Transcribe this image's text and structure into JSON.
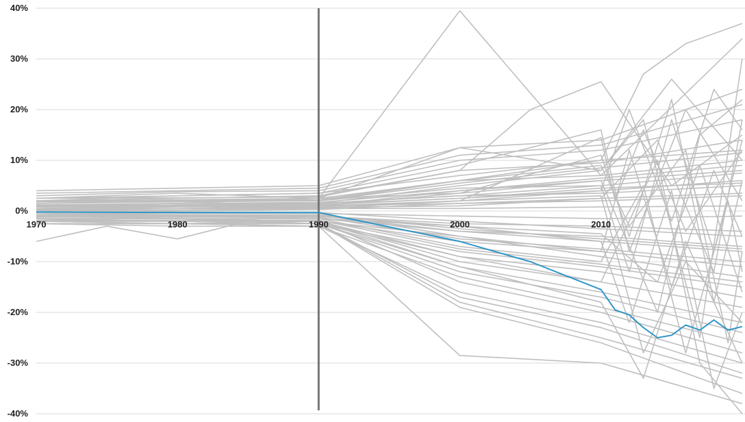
{
  "chart_data": {
    "type": "line",
    "title": "",
    "xlabel": "",
    "ylabel": "",
    "xlim": [
      1970,
      2020.2
    ],
    "ylim": [
      -40,
      40
    ],
    "x_ticks": [
      1970,
      1980,
      1990,
      2000,
      2010
    ],
    "x_tick_labels": [
      "1970",
      "1980",
      "1990",
      "2000",
      "2010"
    ],
    "y_ticks": [
      40,
      30,
      20,
      10,
      0,
      -10,
      -20,
      -30,
      -40
    ],
    "y_tick_labels": [
      "40%",
      "30%",
      "20%",
      "10%",
      "0%",
      "-10%",
      "-20%",
      "-30%",
      "-40%"
    ],
    "grid": "horizontal",
    "legend": "none",
    "reference_line": {
      "x": 1990,
      "color": "#777777"
    },
    "highlight_color": "#2f95c8",
    "background_color": "#bfbfbf",
    "highlighted_series": {
      "x": [
        1970,
        1980,
        1990,
        2000,
        2005,
        2010,
        2011,
        2012,
        2013,
        2014,
        2015,
        2016,
        2017,
        2018,
        2019,
        2020
      ],
      "values": [
        -0.2,
        -0.3,
        -0.3,
        -6.0,
        -10.0,
        -15.5,
        -19.5,
        -20.5,
        -23.0,
        -25.0,
        -24.5,
        -22.5,
        -23.5,
        -21.5,
        -23.5,
        -22.8
      ]
    },
    "background_series": [
      {
        "x": [
          1970,
          1980,
          1990,
          2000,
          2010,
          2020
        ],
        "values": [
          4.0,
          4.5,
          5.0,
          12.5,
          14.0,
          24.0
        ]
      },
      {
        "x": [
          1970,
          1980,
          1990,
          2000,
          2010,
          2020
        ],
        "values": [
          3.0,
          3.8,
          4.0,
          10.0,
          12.0,
          18.0
        ]
      },
      {
        "x": [
          1970,
          1980,
          1990,
          2000,
          2010,
          2020
        ],
        "values": [
          2.5,
          2.6,
          2.8,
          8.0,
          9.5,
          14.0
        ]
      },
      {
        "x": [
          1970,
          1980,
          1990,
          2000,
          2010,
          2020
        ],
        "values": [
          2.0,
          2.2,
          2.5,
          6.0,
          7.0,
          10.0
        ]
      },
      {
        "x": [
          1970,
          1980,
          1990,
          2000,
          2010,
          2020
        ],
        "values": [
          1.5,
          1.8,
          2.0,
          4.5,
          5.0,
          7.5
        ]
      },
      {
        "x": [
          1970,
          1980,
          1990,
          2000,
          2010,
          2020
        ],
        "values": [
          1.0,
          1.2,
          1.5,
          3.0,
          3.5,
          5.0
        ]
      },
      {
        "x": [
          1970,
          1980,
          1990,
          2000,
          2010,
          2020
        ],
        "values": [
          0.5,
          0.8,
          1.0,
          1.5,
          2.0,
          3.0
        ]
      },
      {
        "x": [
          1970,
          1980,
          1990,
          2000,
          2010,
          2020
        ],
        "values": [
          0.0,
          0.2,
          0.5,
          0.5,
          0.8,
          1.0
        ]
      },
      {
        "x": [
          1970,
          1980,
          1990,
          2000,
          2010,
          2020
        ],
        "values": [
          -0.5,
          -0.5,
          -0.5,
          -1.0,
          -1.5,
          -1.0
        ]
      },
      {
        "x": [
          1970,
          1980,
          1990,
          2000,
          2010,
          2020
        ],
        "values": [
          -1.0,
          -1.0,
          -1.0,
          -2.5,
          -3.0,
          -4.0
        ]
      },
      {
        "x": [
          1970,
          1980,
          1990,
          2000,
          2010,
          2020
        ],
        "values": [
          -1.5,
          -1.5,
          -1.5,
          -4.0,
          -5.0,
          -7.0
        ]
      },
      {
        "x": [
          1970,
          1980,
          1990,
          2000,
          2010,
          2020
        ],
        "values": [
          -2.0,
          -2.0,
          -2.0,
          -6.0,
          -8.0,
          -11.0
        ]
      },
      {
        "x": [
          1970,
          1980,
          1990,
          2000,
          2010,
          2020
        ],
        "values": [
          -2.5,
          -2.5,
          -2.5,
          -8.0,
          -11.0,
          -15.0
        ]
      },
      {
        "x": [
          1970,
          1980,
          1990,
          2000,
          2010,
          2020
        ],
        "values": [
          -2.0,
          -2.5,
          -2.0,
          -10.0,
          -14.0,
          -19.0
        ]
      },
      {
        "x": [
          1970,
          1980,
          1990,
          2000,
          2010,
          2020
        ],
        "values": [
          -1.5,
          -2.0,
          -2.5,
          -12.0,
          -17.0,
          -24.0
        ]
      },
      {
        "x": [
          1970,
          1980,
          1990,
          2000,
          2010,
          2020
        ],
        "values": [
          -1.0,
          -1.5,
          -2.0,
          -14.0,
          -20.0,
          -28.0
        ]
      },
      {
        "x": [
          1970,
          1980,
          1990,
          2000,
          2010,
          2020
        ],
        "values": [
          -2.0,
          -2.0,
          -2.5,
          -17.0,
          -23.0,
          -32.0
        ]
      },
      {
        "x": [
          1970,
          1980,
          1990,
          2000,
          2010,
          2020
        ],
        "values": [
          -2.5,
          -2.5,
          -2.5,
          -19.0,
          -26.0,
          -36.0
        ]
      },
      {
        "x": [
          1970,
          1980,
          1990,
          2000,
          2010,
          2020
        ],
        "values": [
          -2.5,
          -2.5,
          -3.0,
          -28.5,
          -30.0,
          -38.0
        ]
      },
      {
        "x": [
          1970,
          1980,
          1990,
          2000,
          2010,
          2020
        ],
        "values": [
          3.5,
          4.0,
          4.5,
          11.0,
          13.0,
          21.0
        ]
      },
      {
        "x": [
          1970,
          1980,
          1990,
          2000,
          2010,
          2020
        ],
        "values": [
          2.0,
          3.0,
          3.5,
          7.0,
          10.0,
          12.0
        ]
      },
      {
        "x": [
          1970,
          1980,
          1990,
          2000,
          2010,
          2020
        ],
        "values": [
          1.0,
          1.5,
          2.5,
          3.5,
          6.0,
          8.0
        ]
      },
      {
        "x": [
          1970,
          1980,
          1990,
          2000,
          2010,
          2020
        ],
        "values": [
          0.5,
          1.0,
          1.0,
          2.0,
          4.0,
          6.0
        ]
      },
      {
        "x": [
          1970,
          1980,
          1990,
          2000,
          2010,
          2020
        ],
        "values": [
          -0.5,
          -1.0,
          -1.5,
          -3.0,
          -6.0,
          -8.0
        ]
      },
      {
        "x": [
          1970,
          1980,
          1990,
          2000,
          2010,
          2020
        ],
        "values": [
          -1.0,
          -1.5,
          -2.0,
          -5.0,
          -9.0,
          -13.0
        ]
      },
      {
        "x": [
          1970,
          1980,
          1990,
          2000,
          2010,
          2020
        ],
        "values": [
          -2.0,
          -2.0,
          -2.5,
          -9.0,
          -12.0,
          -17.0
        ]
      },
      {
        "x": [
          1970,
          1980,
          1990,
          2000,
          2010,
          2020
        ],
        "values": [
          -1.5,
          -2.0,
          -2.5,
          -11.0,
          -16.0,
          -22.0
        ]
      },
      {
        "x": [
          1970,
          1980,
          1990,
          2000,
          2010,
          2020
        ],
        "values": [
          -2.0,
          -2.5,
          -3.0,
          -13.0,
          -19.0,
          -26.0
        ]
      },
      {
        "x": [
          1970,
          1980,
          1990,
          2000,
          2010,
          2020
        ],
        "values": [
          -2.5,
          -3.0,
          -3.0,
          -16.0,
          -22.0,
          -30.0
        ]
      },
      {
        "x": [
          1970,
          1980,
          1990,
          2000,
          2010,
          2020
        ],
        "values": [
          1.5,
          2.0,
          2.0,
          5.5,
          8.5,
          11.5
        ]
      },
      {
        "x": [
          1970,
          1980,
          1990,
          2000,
          2010,
          2020
        ],
        "values": [
          1.2,
          1.5,
          1.7,
          4.0,
          6.5,
          9.0
        ]
      },
      {
        "x": [
          1970,
          1980,
          1990,
          2000,
          2010,
          2020
        ],
        "values": [
          0.8,
          1.0,
          1.3,
          2.5,
          4.5,
          5.5
        ]
      },
      {
        "x": [
          1970,
          1980,
          1990,
          2000,
          2010,
          2020
        ],
        "values": [
          0.2,
          0.5,
          0.7,
          1.0,
          2.5,
          3.5
        ]
      },
      {
        "x": [
          1970,
          1980,
          1990,
          2000,
          2010,
          2020
        ],
        "values": [
          -0.2,
          -0.2,
          -0.3,
          -2.0,
          -3.5,
          -5.0
        ]
      },
      {
        "x": [
          1970,
          1980,
          1990,
          2000,
          2010,
          2020
        ],
        "values": [
          -0.8,
          -0.8,
          -0.8,
          -3.5,
          -5.5,
          -7.5
        ]
      },
      {
        "x": [
          1970,
          1980,
          1990,
          2000,
          2010,
          2020
        ],
        "values": [
          -1.2,
          -1.2,
          -1.2,
          -5.5,
          -7.5,
          -10.0
        ]
      },
      {
        "x": [
          1970,
          1980,
          1990,
          2000,
          2010,
          2020
        ],
        "values": [
          -1.8,
          -1.8,
          -1.8,
          -7.5,
          -10.5,
          -14.0
        ]
      },
      {
        "x": [
          1970,
          1975,
          1980,
          1985,
          1990,
          2000,
          2010,
          2020
        ],
        "values": [
          -6.0,
          -3.0,
          -5.5,
          -2.0,
          -2.5,
          -18.0,
          -25.0,
          -33.0
        ]
      },
      {
        "x": [
          1970,
          1980,
          1990,
          2000,
          2010,
          2020
        ],
        "values": [
          2.5,
          3.5,
          2.5,
          39.5,
          7.0,
          34.0
        ]
      },
      {
        "x": [
          1970,
          1980,
          1990,
          2000,
          2005,
          2010,
          2015,
          2020
        ],
        "values": [
          2.0,
          2.5,
          3.0,
          8.0,
          20.0,
          25.5,
          5.0,
          15.0
        ]
      },
      {
        "x": [
          1970,
          1980,
          1990,
          2000,
          2010,
          2015,
          2020
        ],
        "values": [
          2.0,
          2.0,
          2.5,
          12.5,
          8.0,
          26.0,
          10.0
        ]
      },
      {
        "x": [
          1970,
          1980,
          1990,
          2000,
          2010,
          2013,
          2016,
          2020
        ],
        "values": [
          1.5,
          2.0,
          2.0,
          6.0,
          10.0,
          27.0,
          33.0,
          37.0
        ]
      },
      {
        "x": [
          1970,
          1980,
          1990,
          2000,
          2010,
          2014,
          2017,
          2020
        ],
        "values": [
          0.5,
          1.0,
          1.0,
          4.0,
          6.0,
          -20.0,
          15.0,
          22.0
        ]
      },
      {
        "x": [
          1970,
          1980,
          1990,
          2000,
          2010,
          2012,
          2015,
          2018,
          2020
        ],
        "values": [
          -0.5,
          -0.5,
          -0.5,
          -5.0,
          -8.0,
          12.0,
          -15.0,
          8.0,
          -5.0
        ]
      },
      {
        "x": [
          1970,
          1980,
          1990,
          2000,
          2010,
          2013,
          2016,
          2020
        ],
        "values": [
          0.0,
          0.5,
          0.5,
          2.0,
          3.0,
          -28.0,
          -10.0,
          -22.0
        ]
      },
      {
        "x": [
          1970,
          1980,
          1990,
          2000,
          2010,
          2012,
          2015,
          2018,
          2020
        ],
        "values": [
          1.0,
          1.5,
          1.5,
          3.0,
          5.0,
          -12.0,
          18.0,
          -8.0,
          14.0
        ]
      },
      {
        "x": [
          1970,
          1980,
          1990,
          2000,
          2010,
          2013,
          2016,
          2019,
          2020
        ],
        "values": [
          -1.0,
          -1.0,
          -1.5,
          -7.0,
          -10.0,
          5.0,
          -28.0,
          2.0,
          -12.0
        ]
      },
      {
        "x": [
          1970,
          1980,
          1990,
          2000,
          2010,
          2012,
          2015,
          2018,
          2020
        ],
        "values": [
          0.5,
          0.5,
          1.0,
          3.5,
          11.0,
          -5.0,
          22.0,
          -18.0,
          6.0
        ]
      },
      {
        "x": [
          1970,
          1980,
          1990,
          2000,
          2010,
          2014,
          2017,
          2020
        ],
        "values": [
          -1.5,
          -1.5,
          -2.0,
          -9.0,
          -14.0,
          10.0,
          -30.0,
          -40.0
        ]
      },
      {
        "x": [
          1970,
          1980,
          1990,
          2000,
          2010,
          2012,
          2016,
          2020
        ],
        "values": [
          2.5,
          3.0,
          3.5,
          9.0,
          16.0,
          -8.0,
          20.0,
          2.0
        ]
      },
      {
        "x": [
          1970,
          1980,
          1990,
          2000,
          2010,
          2013,
          2017,
          2020
        ],
        "values": [
          1.0,
          1.2,
          1.5,
          5.0,
          8.0,
          18.0,
          -25.0,
          30.0
        ]
      },
      {
        "x": [
          1970,
          1980,
          1990,
          2000,
          2010,
          2012,
          2015,
          2018,
          2020
        ],
        "values": [
          -0.5,
          -0.8,
          -1.0,
          -4.0,
          -6.0,
          -22.0,
          4.0,
          -35.0,
          -20.0
        ]
      },
      {
        "x": [
          1970,
          1980,
          1990,
          2000,
          2010,
          2014,
          2018,
          2020
        ],
        "values": [
          0.0,
          0.0,
          0.3,
          1.5,
          2.5,
          14.0,
          -12.0,
          18.0
        ]
      },
      {
        "x": [
          1970,
          1980,
          1990,
          2000,
          2010,
          2012,
          2016,
          2019,
          2020
        ],
        "values": [
          1.8,
          2.0,
          2.2,
          6.0,
          9.0,
          -3.0,
          12.0,
          -26.0,
          -8.0
        ]
      },
      {
        "x": [
          1970,
          1980,
          1990,
          2000,
          2010,
          2013,
          2016,
          2020
        ],
        "values": [
          -2.0,
          -2.0,
          -2.0,
          -11.0,
          -18.0,
          -33.0,
          -6.0,
          -30.0
        ]
      },
      {
        "x": [
          1970,
          1980,
          1990,
          2000,
          2010,
          2012,
          2015,
          2018,
          2020
        ],
        "values": [
          0.8,
          1.0,
          1.2,
          2.5,
          4.0,
          20.0,
          -2.0,
          24.0,
          16.0
        ]
      },
      {
        "x": [
          1970,
          1980,
          1990,
          2000,
          2010,
          2014,
          2017,
          2020
        ],
        "values": [
          -0.8,
          -1.0,
          -1.0,
          -3.0,
          -4.5,
          -14.0,
          9.0,
          -16.0
        ]
      },
      {
        "x": [
          1970,
          1980,
          1990,
          2000,
          2010,
          2011,
          2013,
          2016,
          2020
        ],
        "values": [
          0.3,
          0.5,
          0.8,
          2.0,
          14.5,
          2.0,
          16.0,
          -4.0,
          12.0
        ]
      }
    ]
  }
}
